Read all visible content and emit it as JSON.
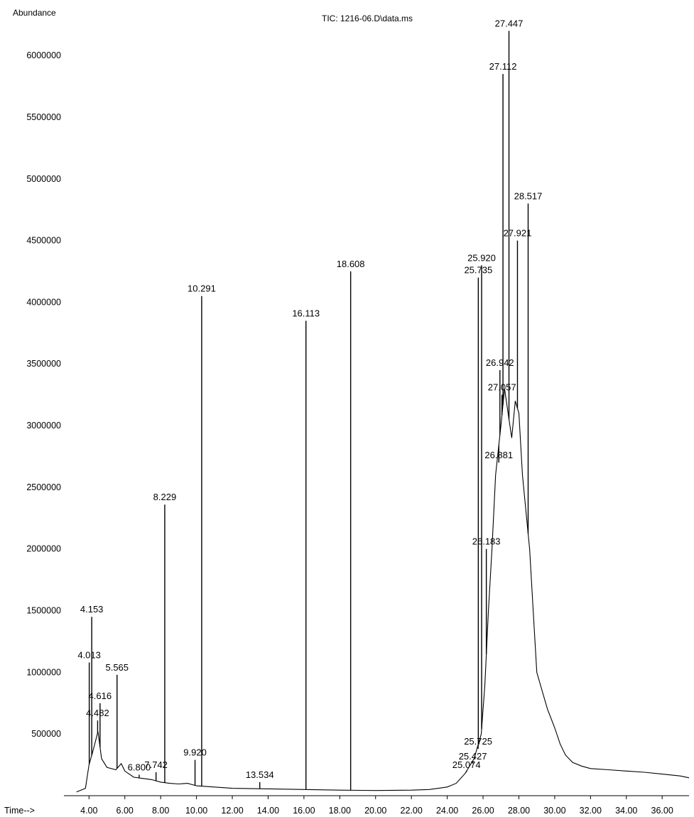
{
  "chart_data": {
    "type": "line",
    "title": "TIC: 1216-06.D\\data.ms",
    "ylabel": "Abundance",
    "xlabel": "Time-->",
    "xlim": [
      2.6,
      37.5
    ],
    "ylim": [
      0,
      6450000
    ],
    "grid": false,
    "yticks": [
      {
        "v": 500000,
        "label": "500000"
      },
      {
        "v": 1000000,
        "label": "1000000"
      },
      {
        "v": 1500000,
        "label": "1500000"
      },
      {
        "v": 2000000,
        "label": "2000000"
      },
      {
        "v": 2500000,
        "label": "2500000"
      },
      {
        "v": 3000000,
        "label": "3000000"
      },
      {
        "v": 3500000,
        "label": "3500000"
      },
      {
        "v": 4000000,
        "label": "4000000"
      },
      {
        "v": 4500000,
        "label": "4500000"
      },
      {
        "v": 5000000,
        "label": "5000000"
      },
      {
        "v": 5500000,
        "label": "5500000"
      },
      {
        "v": 6000000,
        "label": "6000000"
      }
    ],
    "xticks": [
      {
        "v": 4,
        "label": "4.00"
      },
      {
        "v": 6,
        "label": "6.00"
      },
      {
        "v": 8,
        "label": "8.00"
      },
      {
        "v": 10,
        "label": "10.00"
      },
      {
        "v": 12,
        "label": "12.00"
      },
      {
        "v": 14,
        "label": "14.00"
      },
      {
        "v": 16,
        "label": "16.00"
      },
      {
        "v": 18,
        "label": "18.00"
      },
      {
        "v": 20,
        "label": "20.00"
      },
      {
        "v": 22,
        "label": "22.00"
      },
      {
        "v": 24,
        "label": "24.00"
      },
      {
        "v": 26,
        "label": "26.00"
      },
      {
        "v": 28,
        "label": "28.00"
      },
      {
        "v": 30,
        "label": "30.00"
      },
      {
        "v": 32,
        "label": "32.00"
      },
      {
        "v": 34,
        "label": "34.00"
      },
      {
        "v": 36,
        "label": "36.00"
      }
    ],
    "baseline": [
      [
        3.3,
        30000
      ],
      [
        3.8,
        60000
      ],
      [
        4.0,
        250000
      ],
      [
        4.2,
        350000
      ],
      [
        4.5,
        520000
      ],
      [
        4.7,
        300000
      ],
      [
        5.0,
        230000
      ],
      [
        5.5,
        210000
      ],
      [
        5.8,
        260000
      ],
      [
        6.0,
        200000
      ],
      [
        6.5,
        150000
      ],
      [
        7.0,
        140000
      ],
      [
        7.5,
        130000
      ],
      [
        8.0,
        110000
      ],
      [
        8.5,
        100000
      ],
      [
        9.0,
        95000
      ],
      [
        9.5,
        100000
      ],
      [
        10.0,
        80000
      ],
      [
        11.0,
        70000
      ],
      [
        12.0,
        60000
      ],
      [
        14.0,
        55000
      ],
      [
        16.0,
        50000
      ],
      [
        18.0,
        45000
      ],
      [
        20.0,
        42000
      ],
      [
        22.0,
        45000
      ],
      [
        23.0,
        50000
      ],
      [
        24.0,
        70000
      ],
      [
        24.5,
        100000
      ],
      [
        25.0,
        180000
      ],
      [
        25.5,
        300000
      ],
      [
        25.9,
        500000
      ],
      [
        26.1,
        900000
      ],
      [
        26.3,
        1500000
      ],
      [
        26.5,
        2000000
      ],
      [
        26.7,
        2600000
      ],
      [
        27.0,
        3000000
      ],
      [
        27.2,
        3300000
      ],
      [
        27.4,
        3100000
      ],
      [
        27.6,
        2900000
      ],
      [
        27.8,
        3200000
      ],
      [
        28.0,
        3100000
      ],
      [
        28.2,
        2600000
      ],
      [
        28.4,
        2300000
      ],
      [
        28.6,
        2000000
      ],
      [
        28.8,
        1500000
      ],
      [
        29.0,
        1000000
      ],
      [
        29.3,
        850000
      ],
      [
        29.6,
        700000
      ],
      [
        30.0,
        550000
      ],
      [
        30.3,
        420000
      ],
      [
        30.6,
        330000
      ],
      [
        31.0,
        270000
      ],
      [
        31.5,
        240000
      ],
      [
        32.0,
        220000
      ],
      [
        33.0,
        210000
      ],
      [
        34.0,
        200000
      ],
      [
        35.0,
        190000
      ],
      [
        36.0,
        175000
      ],
      [
        37.0,
        160000
      ],
      [
        37.5,
        145000
      ]
    ],
    "peaks": [
      {
        "x": 4.153,
        "y": 1450000,
        "label": "4.153"
      },
      {
        "x": 4.013,
        "y": 1080000,
        "label": "4.013"
      },
      {
        "x": 4.616,
        "y": 750000,
        "label": "4.616"
      },
      {
        "x": 4.482,
        "y": 610000,
        "label": "4.482"
      },
      {
        "x": 5.565,
        "y": 980000,
        "label": "5.565"
      },
      {
        "x": 6.8,
        "y": 170000,
        "label": "6.800"
      },
      {
        "x": 7.742,
        "y": 190000,
        "label": "7.742"
      },
      {
        "x": 8.229,
        "y": 2360000,
        "label": "8.229"
      },
      {
        "x": 9.92,
        "y": 290000,
        "label": "9.920"
      },
      {
        "x": 10.291,
        "y": 4050000,
        "label": "10.291"
      },
      {
        "x": 13.534,
        "y": 110000,
        "label": "13.534"
      },
      {
        "x": 16.113,
        "y": 3850000,
        "label": "16.113"
      },
      {
        "x": 18.608,
        "y": 4250000,
        "label": "18.608"
      },
      {
        "x": 25.074,
        "y": 190000,
        "label": "25.074"
      },
      {
        "x": 25.427,
        "y": 260000,
        "label": "25.427"
      },
      {
        "x": 25.725,
        "y": 380000,
        "label": "25.725"
      },
      {
        "x": 25.92,
        "y": 4300000,
        "label": "25.920"
      },
      {
        "x": 25.735,
        "y": 4200000,
        "label": "25.735"
      },
      {
        "x": 26.183,
        "y": 2000000,
        "label": "26.183"
      },
      {
        "x": 26.881,
        "y": 2700000,
        "label": "26.881"
      },
      {
        "x": 26.942,
        "y": 3450000,
        "label": "26.942"
      },
      {
        "x": 27.057,
        "y": 3250000,
        "label": "27.057"
      },
      {
        "x": 27.112,
        "y": 5850000,
        "label": "27.112"
      },
      {
        "x": 27.447,
        "y": 6200000,
        "label": "27.447"
      },
      {
        "x": 27.921,
        "y": 4500000,
        "label": "27.921"
      },
      {
        "x": 28.517,
        "y": 4800000,
        "label": "28.517"
      }
    ]
  }
}
